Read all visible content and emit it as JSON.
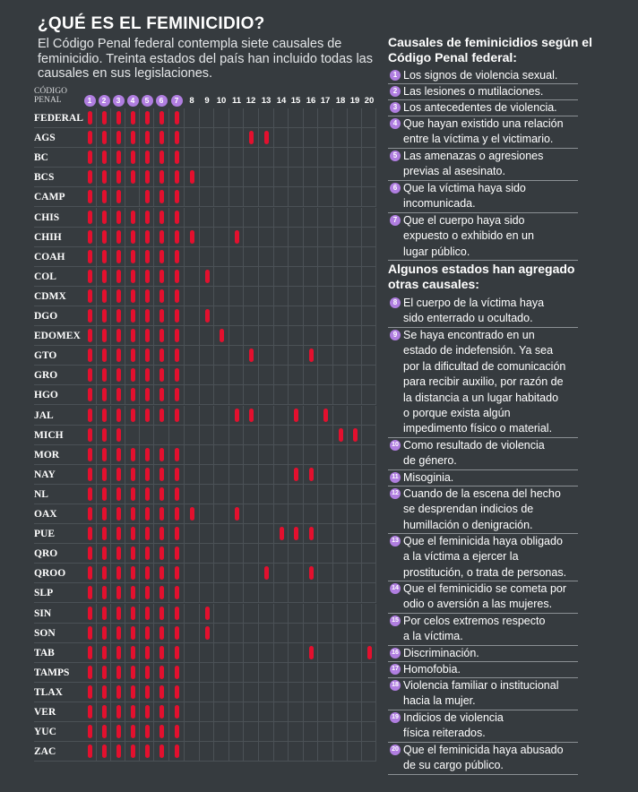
{
  "title": "¿QUÉ ES EL FEMINICIDIO?",
  "subtitle": "El Código Penal federal contempla siete causales de feminicidio. Treinta estados del país han incluido todas las causales en sus legislaciones.",
  "header_label": "CÓDIGO\nPENAL",
  "colors": {
    "bar": "#e3102e",
    "badge": "#b07ee0",
    "background": "#363b3f"
  },
  "chart_data": {
    "type": "table",
    "columns": [
      1,
      2,
      3,
      4,
      5,
      6,
      7,
      8,
      9,
      10,
      11,
      12,
      13,
      14,
      15,
      16,
      17,
      18,
      19,
      20
    ],
    "rows": [
      {
        "label": "FEDERAL",
        "causales": [
          1,
          2,
          3,
          4,
          5,
          6,
          7
        ]
      },
      {
        "label": "AGS",
        "causales": [
          1,
          2,
          3,
          4,
          5,
          6,
          7,
          12,
          13
        ]
      },
      {
        "label": "BC",
        "causales": [
          1,
          2,
          3,
          4,
          5,
          6,
          7
        ]
      },
      {
        "label": "BCS",
        "causales": [
          1,
          2,
          3,
          4,
          5,
          6,
          7,
          8
        ]
      },
      {
        "label": "CAMP",
        "causales": [
          1,
          2,
          3,
          5,
          6,
          7
        ]
      },
      {
        "label": "CHIS",
        "causales": [
          1,
          2,
          3,
          4,
          5,
          6,
          7
        ]
      },
      {
        "label": "CHIH",
        "causales": [
          1,
          2,
          3,
          4,
          5,
          6,
          7,
          8,
          11
        ]
      },
      {
        "label": "COAH",
        "causales": [
          1,
          2,
          3,
          4,
          5,
          6,
          7
        ]
      },
      {
        "label": "COL",
        "causales": [
          1,
          2,
          3,
          4,
          5,
          6,
          7,
          9
        ]
      },
      {
        "label": "CDMX",
        "causales": [
          1,
          2,
          3,
          4,
          5,
          6,
          7
        ]
      },
      {
        "label": "DGO",
        "causales": [
          1,
          2,
          3,
          4,
          5,
          6,
          7,
          9
        ]
      },
      {
        "label": "EDOMEX",
        "causales": [
          1,
          2,
          3,
          4,
          5,
          6,
          7,
          10
        ]
      },
      {
        "label": "GTO",
        "causales": [
          1,
          2,
          3,
          4,
          5,
          6,
          7,
          12,
          16
        ]
      },
      {
        "label": "GRO",
        "causales": [
          1,
          2,
          3,
          4,
          5,
          6,
          7
        ]
      },
      {
        "label": "HGO",
        "causales": [
          1,
          2,
          3,
          4,
          5,
          6,
          7
        ]
      },
      {
        "label": "JAL",
        "causales": [
          1,
          2,
          3,
          4,
          5,
          6,
          7,
          11,
          12,
          15,
          17
        ]
      },
      {
        "label": "MICH",
        "causales": [
          1,
          2,
          3,
          18,
          19
        ]
      },
      {
        "label": "MOR",
        "causales": [
          1,
          2,
          3,
          4,
          5,
          6,
          7
        ]
      },
      {
        "label": "NAY",
        "causales": [
          1,
          2,
          3,
          4,
          5,
          6,
          7,
          15,
          16
        ]
      },
      {
        "label": "NL",
        "causales": [
          1,
          2,
          3,
          4,
          5,
          6,
          7
        ]
      },
      {
        "label": "OAX",
        "causales": [
          1,
          2,
          3,
          4,
          5,
          6,
          7,
          8,
          11
        ]
      },
      {
        "label": "PUE",
        "causales": [
          1,
          2,
          3,
          4,
          5,
          6,
          7,
          14,
          15,
          16
        ]
      },
      {
        "label": "QRO",
        "causales": [
          1,
          2,
          3,
          4,
          5,
          6,
          7
        ]
      },
      {
        "label": "QROO",
        "causales": [
          1,
          2,
          3,
          4,
          5,
          6,
          7,
          13,
          16
        ]
      },
      {
        "label": "SLP",
        "causales": [
          1,
          2,
          3,
          4,
          5,
          6,
          7
        ]
      },
      {
        "label": "SIN",
        "causales": [
          1,
          2,
          3,
          4,
          5,
          6,
          7,
          9
        ]
      },
      {
        "label": "SON",
        "causales": [
          1,
          2,
          3,
          4,
          5,
          6,
          7,
          9
        ]
      },
      {
        "label": "TAB",
        "causales": [
          1,
          2,
          3,
          4,
          5,
          6,
          7,
          16,
          20
        ]
      },
      {
        "label": "TAMPS",
        "causales": [
          1,
          2,
          3,
          4,
          5,
          6,
          7
        ]
      },
      {
        "label": "TLAX",
        "causales": [
          1,
          2,
          3,
          4,
          5,
          6,
          7
        ]
      },
      {
        "label": "VER",
        "causales": [
          1,
          2,
          3,
          4,
          5,
          6,
          7
        ]
      },
      {
        "label": "YUC",
        "causales": [
          1,
          2,
          3,
          4,
          5,
          6,
          7
        ]
      },
      {
        "label": "ZAC",
        "causales": [
          1,
          2,
          3,
          4,
          5,
          6,
          7
        ]
      }
    ]
  },
  "panel": {
    "federal_title": "Causales de feminicidios según el Código Penal federal:",
    "added_title": "Algunos estados han agregado otras causales:",
    "items": [
      {
        "n": "1",
        "text": "Los signos de violencia sexual."
      },
      {
        "n": "2",
        "text": "Las lesiones o mutilaciones."
      },
      {
        "n": "3",
        "text": "Los antecedentes de violencia."
      },
      {
        "n": "4",
        "text": "Que hayan existido una relación\nentre la víctima y el victimario."
      },
      {
        "n": "5",
        "text": "Las amenazas o agresiones\nprevias al asesinato."
      },
      {
        "n": "6",
        "text": "Que la víctima haya sido\nincomunicada."
      },
      {
        "n": "7",
        "text": "Que el cuerpo haya sido\nexpuesto o exhibido en un\nlugar público."
      },
      {
        "n": "8",
        "text": "El cuerpo de la víctima haya\nsido enterrado u ocultado."
      },
      {
        "n": "9",
        "text": "Se haya encontrado en un\nestado de indefensión. Ya sea\npor la dificultad de comunicación\npara recibir auxilio, por razón de\nla distancia a un lugar habitado\no porque exista algún\nimpedimento físico o material."
      },
      {
        "n": "10",
        "text": "Como resultado de violencia\nde género."
      },
      {
        "n": "11",
        "text": "Misoginia."
      },
      {
        "n": "12",
        "text": "Cuando de la escena del hecho\nse desprendan indicios de\nhumillación o denigración."
      },
      {
        "n": "13",
        "text": "Que el feminicida haya obligado\na la víctima a ejercer la\nprostitución, o  trata de personas."
      },
      {
        "n": "14",
        "text": "Que el feminicidio se cometa por\nodio o aversión a las mujeres."
      },
      {
        "n": "15",
        "text": "Por celos extremos respecto\na la víctima."
      },
      {
        "n": "16",
        "text": "Discriminación."
      },
      {
        "n": "17",
        "text": "Homofobia."
      },
      {
        "n": "18",
        "text": "Violencia familiar o institucional\n hacia la mujer."
      },
      {
        "n": "19",
        "text": "Indicios de violencia\nfísica reiterados."
      },
      {
        "n": "20",
        "text": "Que el feminicida haya abusado\nde su cargo público."
      }
    ]
  }
}
